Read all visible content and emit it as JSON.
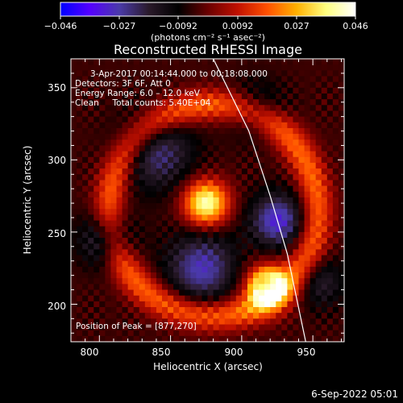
{
  "colorbar": {
    "ticks": [
      "−0.046",
      "−0.027",
      "−0.0092",
      "0.0092",
      "0.027",
      "0.046"
    ],
    "min": -0.046,
    "max": 0.046,
    "unit": "(photons cm⁻² s⁻¹ asec⁻²)",
    "colors": [
      "#0000ff",
      "#5500ff",
      "#4a3aa8",
      "#2a1a2a",
      "#000000",
      "#6a0000",
      "#c01000",
      "#ff5000",
      "#ffb000",
      "#ffff80",
      "#ffffff"
    ]
  },
  "chart_data": {
    "type": "heatmap",
    "title": "Reconstructed RHESSI Image",
    "xlabel": "Heliocentric X (arcsec)",
    "ylabel": "Heliocentric Y (arcsec)",
    "xlim": [
      780,
      972
    ],
    "ylim": [
      174,
      370
    ],
    "xticks": [
      800,
      850,
      900,
      950
    ],
    "yticks": [
      200,
      250,
      300,
      350
    ],
    "x_tick_labels": [
      "800",
      "850",
      "900",
      "950"
    ],
    "y_tick_labels": [
      "200",
      "250",
      "300",
      "350"
    ],
    "peak": [
      877,
      270
    ],
    "sources": [
      {
        "x": 875,
        "y": 270,
        "amplitude": 0.046,
        "sigma": 11
      },
      {
        "x": 918,
        "y": 212,
        "amplitude": 0.03,
        "sigma": 12
      },
      {
        "x": 872,
        "y": 225,
        "amplitude": -0.025,
        "sigma": 17
      },
      {
        "x": 925,
        "y": 258,
        "amplitude": -0.028,
        "sigma": 13
      },
      {
        "x": 840,
        "y": 305,
        "amplitude": -0.02,
        "sigma": 18
      },
      {
        "x": 910,
        "y": 335,
        "amplitude": -0.012,
        "sigma": 14
      },
      {
        "x": 805,
        "y": 245,
        "amplitude": -0.02,
        "sigma": 13
      },
      {
        "x": 955,
        "y": 215,
        "amplitude": -0.014,
        "sigma": 12
      }
    ],
    "rings": [
      {
        "x": 880,
        "y": 265,
        "radius": 73,
        "width": 8,
        "amplitude": 0.024
      },
      {
        "x": 918,
        "y": 212,
        "radius": 10,
        "width": 3,
        "amplitude": 0.012
      }
    ],
    "limb_curve": [
      [
        880,
        370
      ],
      [
        905,
        320
      ],
      [
        920,
        275
      ],
      [
        932,
        235
      ],
      [
        945,
        174
      ]
    ]
  },
  "overlay": {
    "time_range": "3-Apr-2017 00:14:44.000 to 00:18:08.000",
    "detectors": "Detectors: 3F 6F, Att 0",
    "energy": "Energy Range: 6.0 – 12.0 keV",
    "clean": "Clean     Total counts: 5.40E+04",
    "peak_text": "Position of Peak = [877,270]"
  },
  "timestamp": "6-Sep-2022 05:01"
}
